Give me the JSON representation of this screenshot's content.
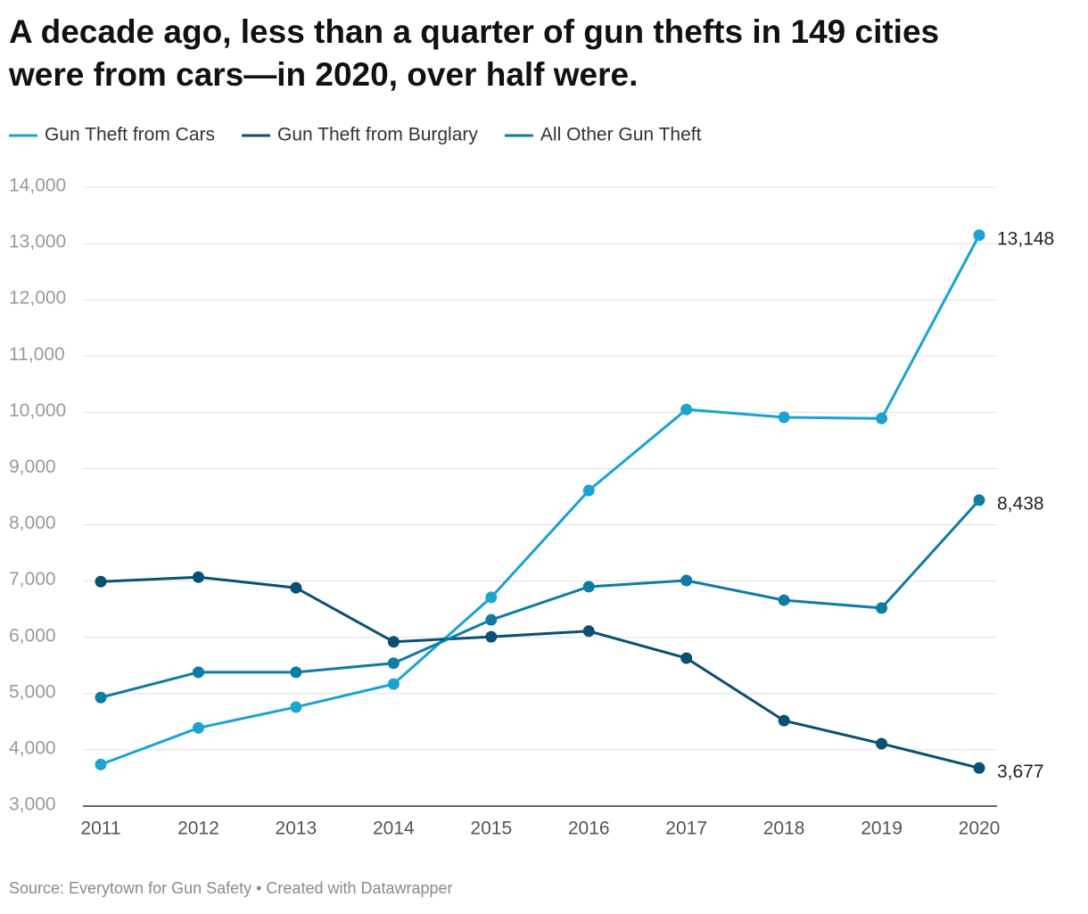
{
  "chart_data": {
    "type": "line",
    "title": "A decade ago, less than a quarter of gun thefts in 149 cities were from cars—in 2020, over half were.",
    "source": "Source: Everytown for Gun Safety • Created with Datawrapper",
    "categories": [
      "2011",
      "2012",
      "2013",
      "2014",
      "2015",
      "2016",
      "2017",
      "2018",
      "2019",
      "2020"
    ],
    "series": [
      {
        "name": "Gun Theft from Cars",
        "color": "#1ba3d1",
        "values": [
          3740,
          4390,
          4760,
          5170,
          6710,
          8610,
          10050,
          9910,
          9890,
          13148
        ],
        "value_labels": [
          null,
          null,
          null,
          null,
          null,
          null,
          null,
          null,
          null,
          "13,148"
        ]
      },
      {
        "name": "Gun Theft from Burglary",
        "color": "#0a4f74",
        "values": [
          6990,
          7070,
          6880,
          5920,
          6010,
          6110,
          5630,
          4520,
          4110,
          3677
        ],
        "value_labels": [
          null,
          null,
          null,
          null,
          null,
          null,
          null,
          null,
          null,
          "3,677"
        ]
      },
      {
        "name": "All Other Gun Theft",
        "color": "#0e7ca3",
        "values": [
          4930,
          5380,
          5380,
          5540,
          6310,
          6900,
          7010,
          6660,
          6520,
          8438
        ],
        "value_labels": [
          null,
          null,
          null,
          null,
          null,
          null,
          null,
          null,
          null,
          "8,438"
        ]
      }
    ],
    "ylim": [
      3000,
      14000
    ],
    "yticks": [
      {
        "value": 3000,
        "label": "3,000"
      },
      {
        "value": 4000,
        "label": "4,000"
      },
      {
        "value": 5000,
        "label": "5,000"
      },
      {
        "value": 6000,
        "label": "6,000"
      },
      {
        "value": 7000,
        "label": "7,000"
      },
      {
        "value": 8000,
        "label": "8,000"
      },
      {
        "value": 9000,
        "label": "9,000"
      },
      {
        "value": 10000,
        "label": "10,000"
      },
      {
        "value": 11000,
        "label": "11,000"
      },
      {
        "value": 12000,
        "label": "12,000"
      },
      {
        "value": 13000,
        "label": "13,000"
      },
      {
        "value": 14000,
        "label": "14,000"
      }
    ],
    "grid": true,
    "legend": "top"
  }
}
